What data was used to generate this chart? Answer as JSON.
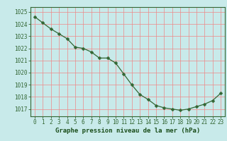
{
  "x": [
    0,
    1,
    2,
    3,
    4,
    5,
    6,
    7,
    8,
    9,
    10,
    11,
    12,
    13,
    14,
    15,
    16,
    17,
    18,
    19,
    20,
    21,
    22,
    23
  ],
  "y": [
    1024.6,
    1024.1,
    1023.6,
    1023.2,
    1022.8,
    1022.1,
    1022.0,
    1021.7,
    1021.2,
    1021.2,
    1020.8,
    1019.9,
    1019.0,
    1018.2,
    1017.8,
    1017.3,
    1017.1,
    1017.0,
    1016.9,
    1017.0,
    1017.2,
    1017.4,
    1017.7,
    1018.3
  ],
  "line_color": "#336633",
  "marker": "D",
  "marker_size": 2.5,
  "bg_color": "#c8eaea",
  "plot_bg_color": "#c8eaea",
  "grid_color_minor": "#ee8888",
  "grid_color_major": "#cc4444",
  "xlabel": "Graphe pression niveau de la mer (hPa)",
  "xlabel_color": "#1a4d1a",
  "ylabel_ticks": [
    1017,
    1018,
    1019,
    1020,
    1021,
    1022,
    1023,
    1024,
    1025
  ],
  "ylim": [
    1016.4,
    1025.4
  ],
  "xlim": [
    -0.5,
    23.5
  ],
  "tick_color": "#336633",
  "spine_color": "#336633",
  "tick_fontsize": 5.5,
  "xlabel_fontsize": 6.5
}
